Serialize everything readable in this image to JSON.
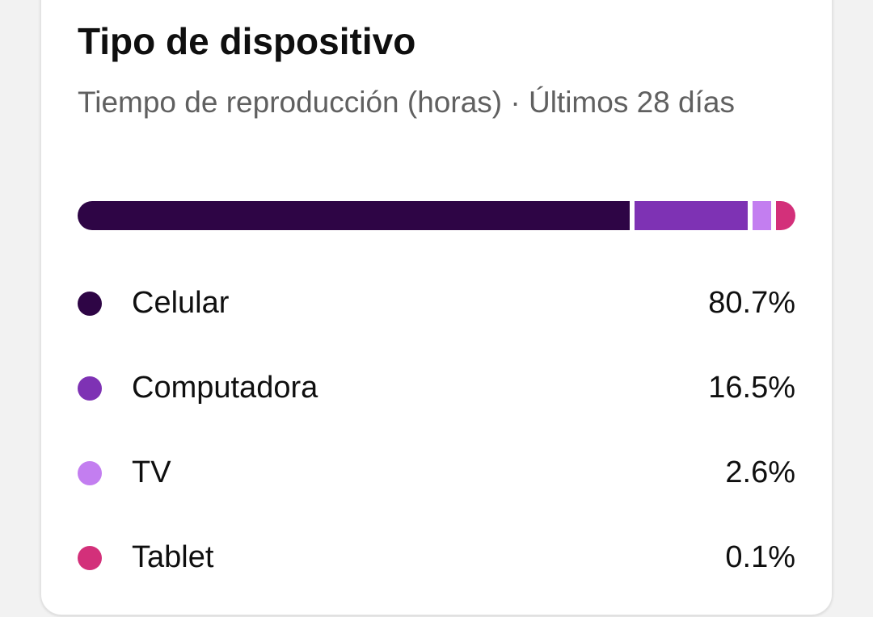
{
  "card": {
    "title": "Tipo de dispositivo",
    "subtitle": "Tiempo de reproducción (horas) · Últimos 28 días"
  },
  "chart_data": {
    "type": "bar",
    "orientation": "horizontal-stacked",
    "title": "Tipo de dispositivo",
    "subtitle": "Tiempo de reproducción (horas) · Últimos 28 días",
    "categories": [
      "Celular",
      "Computadora",
      "TV",
      "Tablet"
    ],
    "values": [
      80.7,
      16.5,
      2.6,
      0.1
    ],
    "labels": [
      "80.7%",
      "16.5%",
      "2.6%",
      "0.1%"
    ],
    "colors": [
      "#2e0545",
      "#7e32b4",
      "#c37ef0",
      "#d3307a"
    ],
    "unit": "%"
  }
}
